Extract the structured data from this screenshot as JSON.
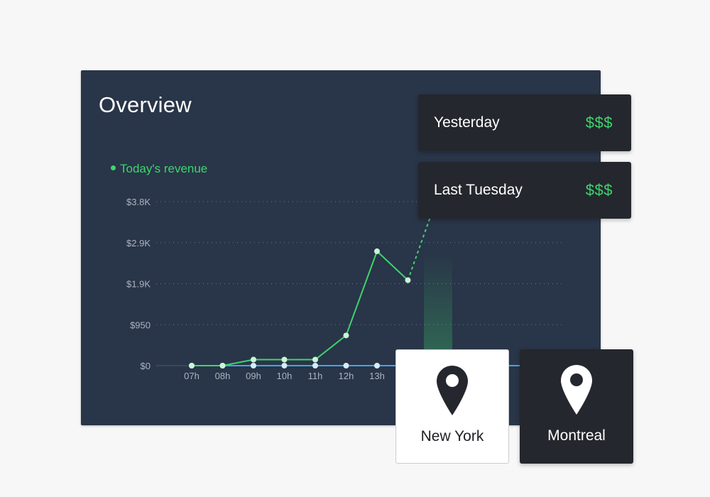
{
  "overview": {
    "title": "Overview",
    "legend_label": "Today's revenue"
  },
  "chart_data": {
    "type": "line",
    "title": "",
    "xlabel": "",
    "ylabel": "",
    "categories": [
      "07h",
      "08h",
      "09h",
      "10h",
      "11h",
      "12h",
      "13h"
    ],
    "y_ticks": [
      "$0",
      "$950",
      "$1.9K",
      "$2.9K",
      "$3.8K"
    ],
    "ylim": [
      0,
      3800
    ],
    "grid": true,
    "legend": "top-left",
    "series": [
      {
        "name": "Today's revenue",
        "color": "#3dd56d",
        "x": [
          "07h",
          "08h",
          "09h",
          "10h",
          "11h",
          "12h",
          "13h",
          "14h"
        ],
        "values": [
          0,
          0,
          140,
          140,
          140,
          700,
          2650,
          1980
        ],
        "projected": [
          1980,
          4000
        ]
      },
      {
        "color": "#3fa7e6",
        "x": [
          "07h",
          "08h",
          "09h",
          "10h",
          "11h",
          "12h",
          "13h"
        ],
        "values": [
          0,
          0,
          0,
          0,
          0,
          0,
          0
        ]
      }
    ]
  },
  "comparisons": [
    {
      "label": "Yesterday",
      "value": "$$$"
    },
    {
      "label": "Last Tuesday",
      "value": "$$$"
    }
  ],
  "locations": [
    {
      "name": "New York",
      "icon": "map-pin-icon",
      "selected": true
    },
    {
      "name": "Montreal",
      "icon": "map-pin-icon",
      "selected": false
    }
  ],
  "colors": {
    "panel": "#293548",
    "accent_green": "#3dd56d",
    "accent_blue": "#3fa7e6",
    "card_dark": "#24272d"
  }
}
